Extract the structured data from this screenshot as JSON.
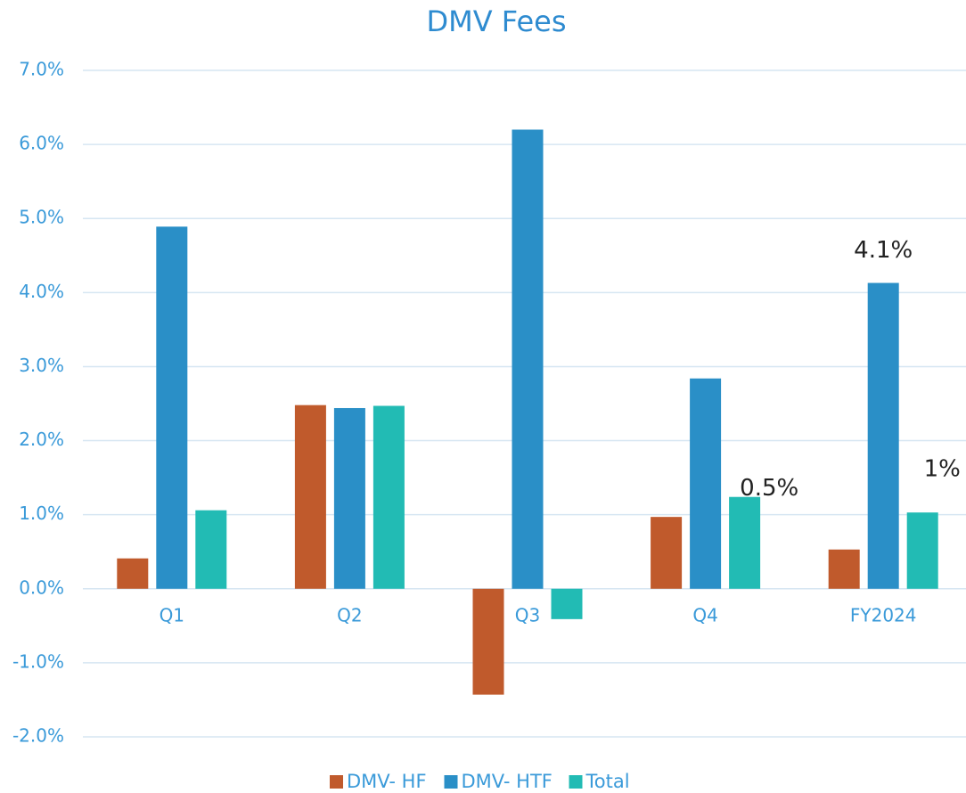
{
  "chart_data": {
    "type": "bar",
    "title": "DMV Fees",
    "categories": [
      "Q1",
      "Q2",
      "Q3",
      "Q4",
      "FY2024"
    ],
    "series": [
      {
        "name": "DMV- HF",
        "color": "#c05a2c",
        "values": [
          0.41,
          2.48,
          -1.43,
          0.97,
          0.53
        ],
        "value_labels": [
          null,
          null,
          null,
          null,
          "0.5%"
        ]
      },
      {
        "name": "DMV- HTF",
        "color": "#2a8fc7",
        "values": [
          4.89,
          2.44,
          6.2,
          2.84,
          4.13
        ],
        "value_labels": [
          null,
          null,
          null,
          null,
          "4.1%"
        ]
      },
      {
        "name": "Total",
        "color": "#22bbb4",
        "values": [
          1.06,
          2.47,
          -0.41,
          1.24,
          1.03
        ],
        "value_labels": [
          null,
          null,
          null,
          null,
          "1%"
        ]
      }
    ],
    "ylim": [
      -2,
      7
    ],
    "yticks": [
      {
        "value": -2,
        "label": "-2.0%"
      },
      {
        "value": -1,
        "label": "-1.0%"
      },
      {
        "value": 0,
        "label": "0.0%"
      },
      {
        "value": 1,
        "label": "1.0%"
      },
      {
        "value": 2,
        "label": "2.0%"
      },
      {
        "value": 3,
        "label": "3.0%"
      },
      {
        "value": 4,
        "label": "4.0%"
      },
      {
        "value": 5,
        "label": "5.0%"
      },
      {
        "value": 6,
        "label": "6.0%"
      },
      {
        "value": 7,
        "label": "7.0%"
      }
    ],
    "grid": true,
    "legend": "bottom"
  }
}
